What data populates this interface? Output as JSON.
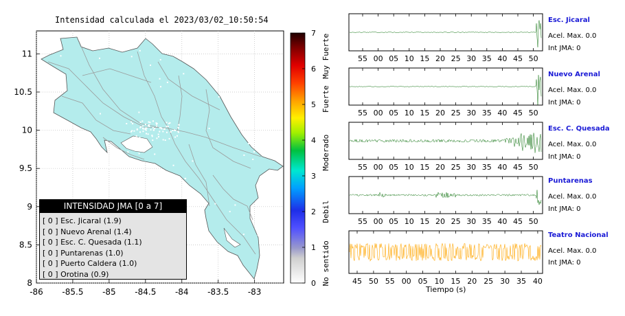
{
  "map": {
    "title": "Intensidad calculada el 2023/03/02_10:50:54",
    "colors": {
      "land": "#b4ecec",
      "roads": "#9a9a9a",
      "cities": "#ffffff",
      "frame": "#000000"
    }
  },
  "colorbar": {
    "ticks": [
      "0",
      "1",
      "2",
      "3",
      "4",
      "5",
      "6",
      "7"
    ],
    "categories": [
      "No sentido",
      "Debil",
      "Moderado",
      "Fuerte",
      "Muy Fuerte"
    ]
  },
  "legend": {
    "header": "INTENSIDAD JMA [0 a 7]",
    "items": [
      "[ 0 ]  Esc. Jicaral (1.9)",
      "[ 0 ]  Nuevo Arenal (1.4)",
      "[ 0 ]  Esc. C. Quesada (1.1)",
      "[ 0 ]  Puntarenas (1.0)",
      "[ 0 ]  Puerto Caldera (1.0)",
      "[ 0 ]  Orotina (0.9)"
    ]
  },
  "stations": [
    {
      "name": "Esc. Jicaral",
      "acc": "Acel. Max. 0.0",
      "int": "Int JMA: 0",
      "color": "#0a6e0a",
      "ticks": [
        "55",
        "00",
        "05",
        "10",
        "15",
        "20",
        "25",
        "30",
        "35",
        "40",
        "45",
        "50"
      ]
    },
    {
      "name": "Nuevo Arenal",
      "acc": "Acel. Max. 0.0",
      "int": "Int JMA: 0",
      "color": "#0a6e0a",
      "ticks": [
        "55",
        "00",
        "05",
        "10",
        "15",
        "20",
        "25",
        "30",
        "35",
        "40",
        "45",
        "50"
      ]
    },
    {
      "name": "Esc. C. Quesada",
      "acc": "Acel. Max. 0.0",
      "int": "Int JMA: 0",
      "color": "#0a6e0a",
      "ticks": [
        "55",
        "00",
        "05",
        "10",
        "15",
        "20",
        "25",
        "30",
        "35",
        "40",
        "45",
        "50"
      ]
    },
    {
      "name": "Puntarenas",
      "acc": "Acel. Max. 0.0",
      "int": "Int JMA: 0",
      "color": "#0a6e0a",
      "ticks": [
        "55",
        "00",
        "05",
        "10",
        "15",
        "20",
        "25",
        "30",
        "35",
        "40",
        "45",
        "50"
      ]
    },
    {
      "name": "Teatro Nacional",
      "acc": "Acel. Max. 0.0",
      "int": "Int JMA: 0",
      "color": "#ffa500",
      "ticks": [
        "45",
        "50",
        "55",
        "00",
        "05",
        "10",
        "15",
        "20",
        "25",
        "30",
        "35",
        "40"
      ]
    }
  ],
  "wave_xlabel": "Tiempo (s)",
  "chart_data": [
    {
      "type": "map",
      "title": "Intensidad calculada el 2023/03/02_10:50:54",
      "xlim": [
        -86,
        -82.6
      ],
      "ylim": [
        8,
        11.3
      ],
      "x_ticks": [
        "-86",
        "-85.5",
        "-85",
        "-84.5",
        "-84",
        "-83.5",
        "-83"
      ],
      "y_ticks": [
        "8",
        "8.5",
        "9",
        "9.5",
        "10",
        "10.5",
        "11"
      ],
      "colorbar_range": [
        0,
        7
      ]
    },
    {
      "type": "line",
      "xlabel": "Tiempo (s)",
      "series": [
        {
          "name": "Esc. Jicaral",
          "peak_time_s": 49,
          "intensity": 0
        },
        {
          "name": "Nuevo Arenal",
          "peak_time_s": 50,
          "intensity": 0
        },
        {
          "name": "Esc. C. Quesada",
          "peak_time_s": 47,
          "intensity": 0
        },
        {
          "name": "Puntarenas",
          "peak_time_s": 49,
          "intensity": 0
        },
        {
          "name": "Teatro Nacional",
          "peak_time_s": null,
          "intensity": 0
        }
      ]
    }
  ]
}
